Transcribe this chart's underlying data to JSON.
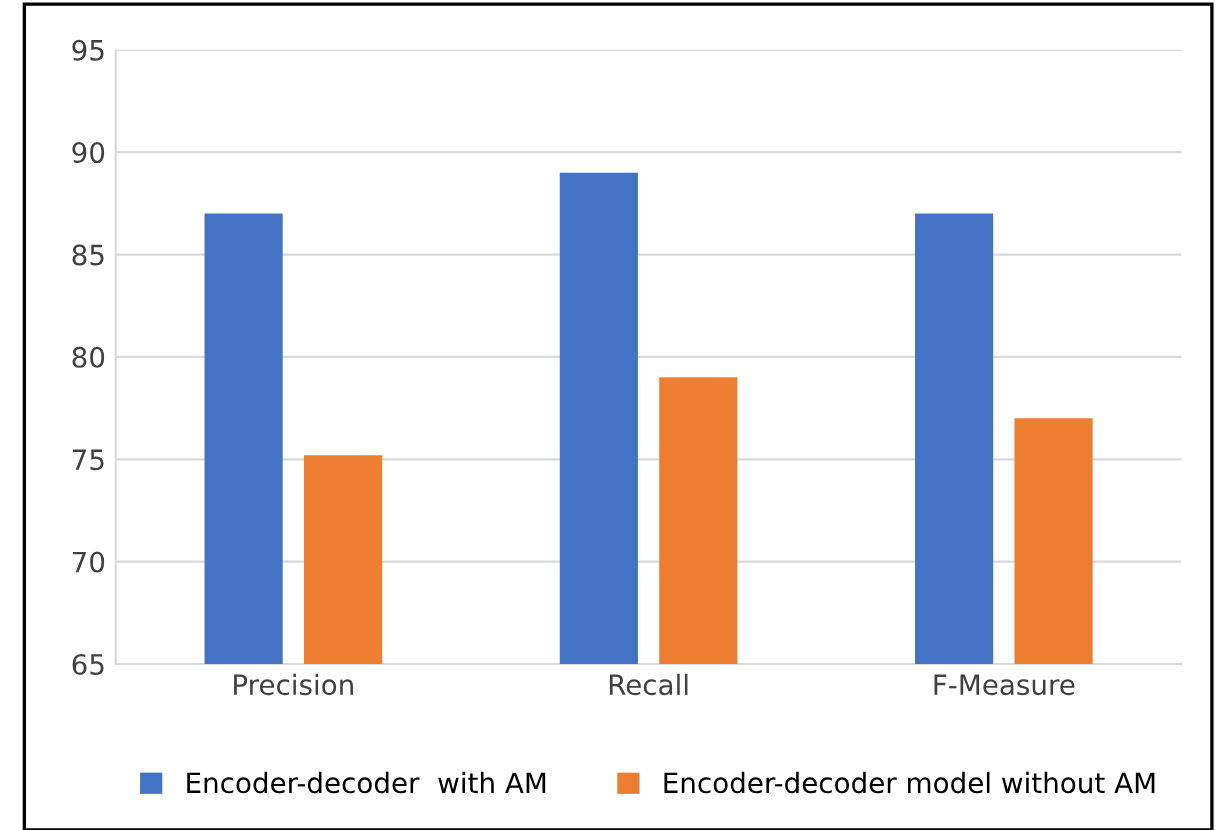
{
  "chart_data": {
    "type": "bar",
    "categories": [
      "Precision",
      "Recall",
      "F-Measure"
    ],
    "series": [
      {
        "name": "Encoder-decoder  with AM",
        "color": "#4472c4",
        "values": [
          87,
          89,
          87
        ]
      },
      {
        "name": "Encoder-decoder model without AM",
        "color": "#ed7d31",
        "values": [
          75.2,
          79,
          77
        ]
      }
    ],
    "ylim": [
      65,
      95
    ],
    "yticks": [
      65,
      70,
      75,
      80,
      85,
      90,
      95
    ],
    "grid": "y",
    "legend": "bottom"
  }
}
